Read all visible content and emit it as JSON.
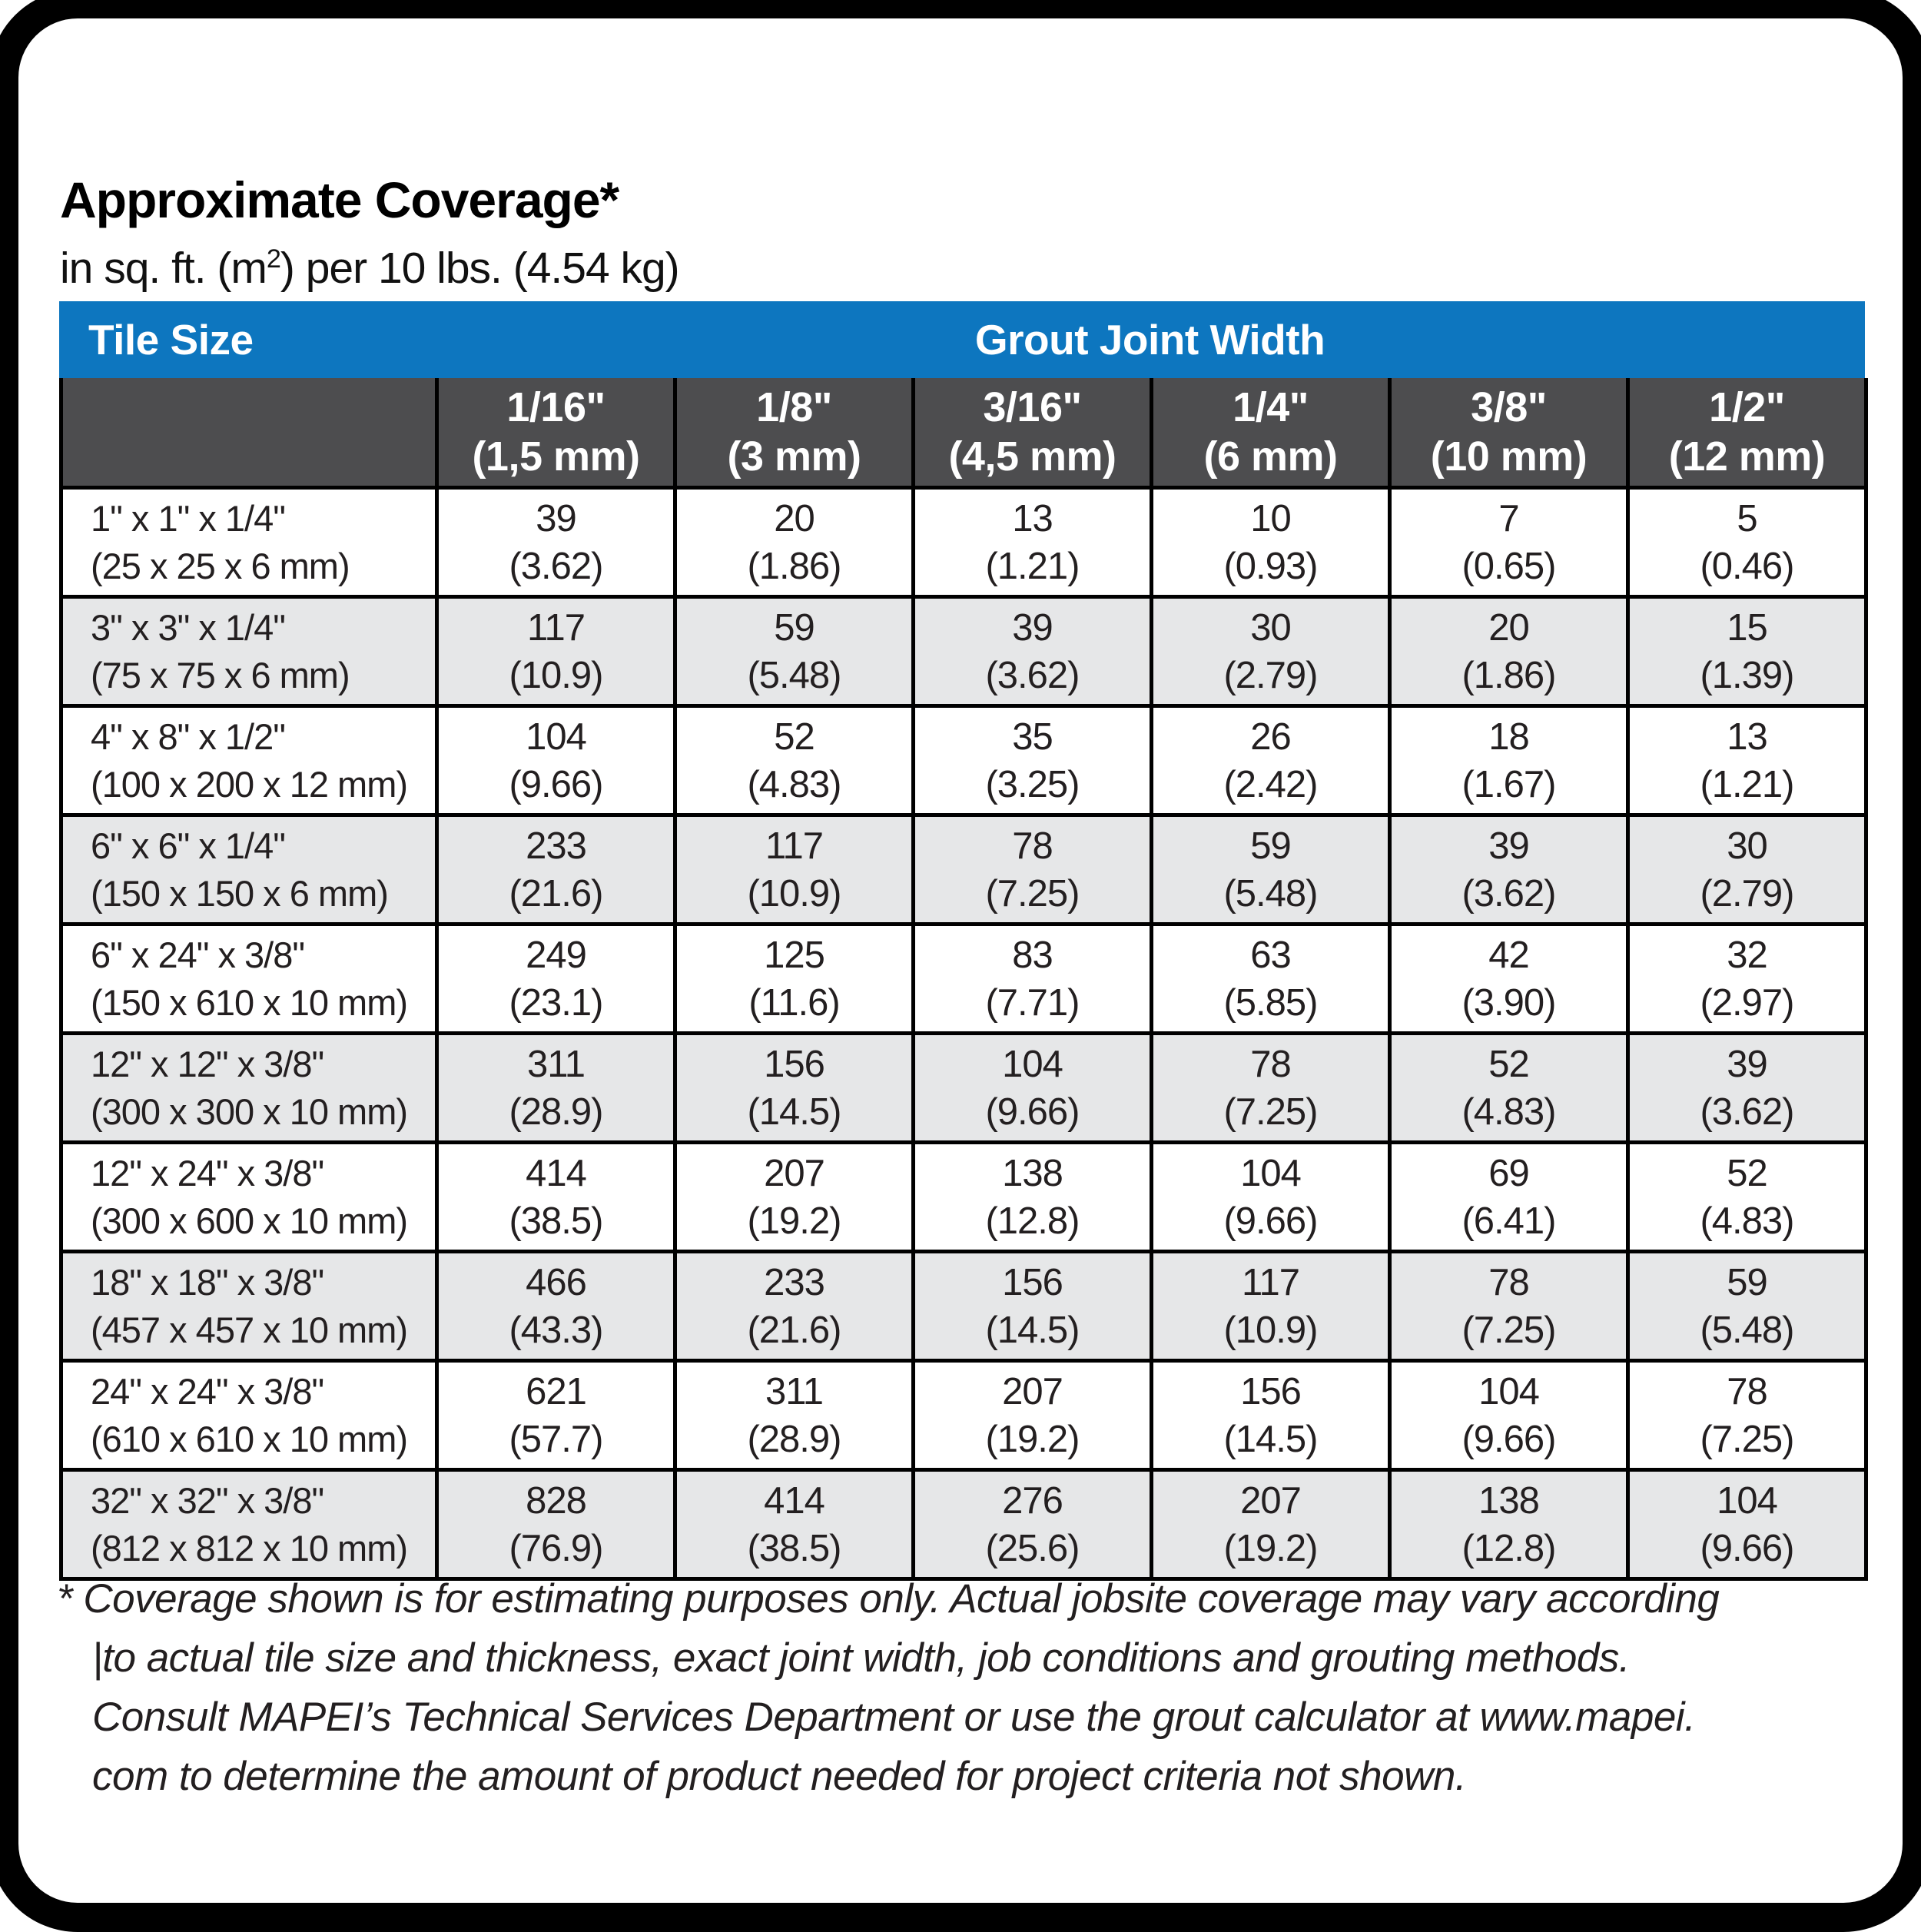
{
  "colors": {
    "header_blue": "#0d76bf",
    "subheader_gray": "#4d4d4f",
    "row_alt_gray": "#e6e7e8",
    "text_dark": "#231f20"
  },
  "header": {
    "title": "Approximate Coverage*",
    "subtitle_prefix": "in sq. ft. (m",
    "subtitle_superscript": "2",
    "subtitle_suffix": ") per 10 lbs. (4.54 kg)"
  },
  "table": {
    "tile_size_label": "Tile Size",
    "grout_joint_width_label": "Grout Joint Width",
    "columns": [
      {
        "inches": "1/16\"",
        "metric": "(1,5 mm)"
      },
      {
        "inches": "1/8\"",
        "metric": "(3 mm)"
      },
      {
        "inches": "3/16\"",
        "metric": "(4,5 mm)"
      },
      {
        "inches": "1/4\"",
        "metric": "(6 mm)"
      },
      {
        "inches": "3/8\"",
        "metric": "(10 mm)"
      },
      {
        "inches": "1/2\"",
        "metric": "(12 mm)"
      }
    ],
    "rows": [
      {
        "tile_inches": "1\" x 1\" x 1/4\"",
        "tile_metric": "(25 x 25 x 6 mm)",
        "cells": [
          {
            "sqft": "39",
            "m2": "(3.62)"
          },
          {
            "sqft": "20",
            "m2": "(1.86)"
          },
          {
            "sqft": "13",
            "m2": "(1.21)"
          },
          {
            "sqft": "10",
            "m2": "(0.93)"
          },
          {
            "sqft": "7",
            "m2": "(0.65)"
          },
          {
            "sqft": "5",
            "m2": "(0.46)"
          }
        ]
      },
      {
        "tile_inches": "3\" x 3\" x 1/4\"",
        "tile_metric": "(75 x 75 x 6 mm)",
        "cells": [
          {
            "sqft": "117",
            "m2": "(10.9)"
          },
          {
            "sqft": "59",
            "m2": "(5.48)"
          },
          {
            "sqft": "39",
            "m2": "(3.62)"
          },
          {
            "sqft": "30",
            "m2": "(2.79)"
          },
          {
            "sqft": "20",
            "m2": "(1.86)"
          },
          {
            "sqft": "15",
            "m2": "(1.39)"
          }
        ]
      },
      {
        "tile_inches": "4\" x 8\" x 1/2\"",
        "tile_metric": "(100 x 200 x 12 mm)",
        "cells": [
          {
            "sqft": "104",
            "m2": "(9.66)"
          },
          {
            "sqft": "52",
            "m2": "(4.83)"
          },
          {
            "sqft": "35",
            "m2": "(3.25)"
          },
          {
            "sqft": "26",
            "m2": "(2.42)"
          },
          {
            "sqft": "18",
            "m2": "(1.67)"
          },
          {
            "sqft": "13",
            "m2": "(1.21)"
          }
        ]
      },
      {
        "tile_inches": "6\" x 6\" x 1/4\"",
        "tile_metric": "(150 x 150 x 6 mm)",
        "cells": [
          {
            "sqft": "233",
            "m2": "(21.6)"
          },
          {
            "sqft": "117",
            "m2": "(10.9)"
          },
          {
            "sqft": "78",
            "m2": "(7.25)"
          },
          {
            "sqft": "59",
            "m2": "(5.48)"
          },
          {
            "sqft": "39",
            "m2": "(3.62)"
          },
          {
            "sqft": "30",
            "m2": "(2.79)"
          }
        ]
      },
      {
        "tile_inches": "6\" x 24\" x 3/8\"",
        "tile_metric": "(150 x 610 x 10 mm)",
        "cells": [
          {
            "sqft": "249",
            "m2": "(23.1)"
          },
          {
            "sqft": "125",
            "m2": "(11.6)"
          },
          {
            "sqft": "83",
            "m2": "(7.71)"
          },
          {
            "sqft": "63",
            "m2": "(5.85)"
          },
          {
            "sqft": "42",
            "m2": "(3.90)"
          },
          {
            "sqft": "32",
            "m2": "(2.97)"
          }
        ]
      },
      {
        "tile_inches": "12\" x 12\" x 3/8\"",
        "tile_metric": "(300 x 300 x 10 mm)",
        "cells": [
          {
            "sqft": "311",
            "m2": "(28.9)"
          },
          {
            "sqft": "156",
            "m2": "(14.5)"
          },
          {
            "sqft": "104",
            "m2": "(9.66)"
          },
          {
            "sqft": "78",
            "m2": "(7.25)"
          },
          {
            "sqft": "52",
            "m2": "(4.83)"
          },
          {
            "sqft": "39",
            "m2": "(3.62)"
          }
        ]
      },
      {
        "tile_inches": "12\" x 24\" x 3/8\"",
        "tile_metric": "(300 x 600 x 10 mm)",
        "cells": [
          {
            "sqft": "414",
            "m2": "(38.5)"
          },
          {
            "sqft": "207",
            "m2": "(19.2)"
          },
          {
            "sqft": "138",
            "m2": "(12.8)"
          },
          {
            "sqft": "104",
            "m2": "(9.66)"
          },
          {
            "sqft": "69",
            "m2": "(6.41)"
          },
          {
            "sqft": "52",
            "m2": "(4.83)"
          }
        ]
      },
      {
        "tile_inches": "18\" x 18\" x 3/8\"",
        "tile_metric": "(457 x 457 x 10 mm)",
        "cells": [
          {
            "sqft": "466",
            "m2": "(43.3)"
          },
          {
            "sqft": "233",
            "m2": "(21.6)"
          },
          {
            "sqft": "156",
            "m2": "(14.5)"
          },
          {
            "sqft": "117",
            "m2": "(10.9)"
          },
          {
            "sqft": "78",
            "m2": "(7.25)"
          },
          {
            "sqft": "59",
            "m2": "(5.48)"
          }
        ]
      },
      {
        "tile_inches": "24\" x 24\" x 3/8\"",
        "tile_metric": "(610 x 610 x 10 mm)",
        "cells": [
          {
            "sqft": "621",
            "m2": "(57.7)"
          },
          {
            "sqft": "311",
            "m2": "(28.9)"
          },
          {
            "sqft": "207",
            "m2": "(19.2)"
          },
          {
            "sqft": "156",
            "m2": "(14.5)"
          },
          {
            "sqft": "104",
            "m2": "(9.66)"
          },
          {
            "sqft": "78",
            "m2": "(7.25)"
          }
        ]
      },
      {
        "tile_inches": "32\" x 32\" x 3/8\"",
        "tile_metric": "(812 x 812 x 10 mm)",
        "cells": [
          {
            "sqft": "828",
            "m2": "(76.9)"
          },
          {
            "sqft": "414",
            "m2": "(38.5)"
          },
          {
            "sqft": "276",
            "m2": "(25.6)"
          },
          {
            "sqft": "207",
            "m2": "(19.2)"
          },
          {
            "sqft": "138",
            "m2": "(12.8)"
          },
          {
            "sqft": "104",
            "m2": "(9.66)"
          }
        ]
      }
    ]
  },
  "footnote": {
    "lines": [
      "* Coverage shown is for estimating purposes only. Actual jobsite coverage may vary according",
      "|to actual tile size and thickness, exact joint width, job conditions and grouting methods.",
      "Consult MAPEI’s Technical Services Department or use the grout calculator at www.mapei.",
      "com to determine the amount of product needed for project criteria not shown."
    ]
  }
}
